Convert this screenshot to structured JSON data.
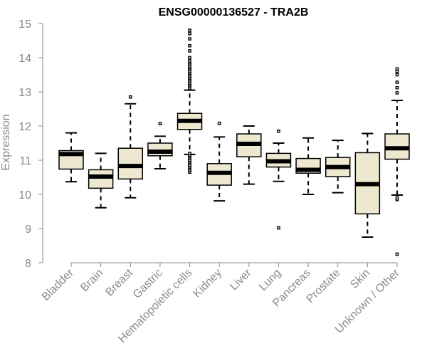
{
  "chart_data": {
    "type": "boxplot",
    "title": "ENSG00000136527 - TRA2B",
    "xlabel": "",
    "ylabel": "Expression",
    "ylim": [
      8,
      15
    ],
    "yticks": [
      8,
      9,
      10,
      11,
      12,
      13,
      14,
      15
    ],
    "box_color": "#eee8d0",
    "categories": [
      "Bladder",
      "Brain",
      "Breast",
      "Gastric",
      "Hematopoietic cells",
      "Kidney",
      "Liver",
      "Lung",
      "Pancreas",
      "Prostate",
      "Skin",
      "Unknown / Other"
    ],
    "boxes": [
      {
        "category": "Bladder",
        "min": 10.37,
        "q1": 10.74,
        "median": 11.18,
        "q3": 11.28,
        "max": 11.8,
        "outliers": []
      },
      {
        "category": "Brain",
        "min": 9.61,
        "q1": 10.18,
        "median": 10.52,
        "q3": 10.72,
        "max": 11.2,
        "outliers": []
      },
      {
        "category": "Breast",
        "min": 9.9,
        "q1": 10.45,
        "median": 10.83,
        "q3": 11.35,
        "max": 12.65,
        "outliers": [
          12.85
        ]
      },
      {
        "category": "Gastric",
        "min": 10.75,
        "q1": 11.13,
        "median": 11.25,
        "q3": 11.5,
        "max": 11.7,
        "outliers": [
          12.07
        ]
      },
      {
        "category": "Hematopoietic cells",
        "min": 11.17,
        "q1": 11.9,
        "median": 12.15,
        "q3": 12.37,
        "max": 13.05,
        "outliers": [
          10.65,
          10.7,
          10.75,
          10.8,
          10.85,
          10.9,
          10.95,
          11.0,
          11.05,
          11.1,
          11.15,
          11.2,
          13.1,
          13.15,
          13.2,
          13.25,
          13.3,
          13.35,
          13.4,
          13.45,
          13.5,
          13.55,
          13.6,
          13.65,
          13.7,
          13.75,
          13.8,
          13.85,
          13.9,
          14.0,
          14.2,
          14.35,
          14.55,
          14.7,
          14.8
        ]
      },
      {
        "category": "Kidney",
        "min": 9.81,
        "q1": 10.27,
        "median": 10.63,
        "q3": 10.9,
        "max": 11.68,
        "outliers": [
          12.08
        ]
      },
      {
        "category": "Liver",
        "min": 10.3,
        "q1": 11.1,
        "median": 11.48,
        "q3": 11.77,
        "max": 12.0,
        "outliers": []
      },
      {
        "category": "Lung",
        "min": 10.38,
        "q1": 10.8,
        "median": 10.97,
        "q3": 11.2,
        "max": 11.5,
        "outliers": [
          11.85,
          9.02
        ]
      },
      {
        "category": "Pancreas",
        "min": 10.0,
        "q1": 10.62,
        "median": 10.72,
        "q3": 11.05,
        "max": 11.65,
        "outliers": []
      },
      {
        "category": "Prostate",
        "min": 10.05,
        "q1": 10.52,
        "median": 10.8,
        "q3": 11.08,
        "max": 11.58,
        "outliers": []
      },
      {
        "category": "Skin",
        "min": 8.75,
        "q1": 9.43,
        "median": 10.3,
        "q3": 11.22,
        "max": 11.78,
        "outliers": []
      },
      {
        "category": "Unknown / Other",
        "min": 9.98,
        "q1": 11.03,
        "median": 11.35,
        "q3": 11.77,
        "max": 12.75,
        "outliers": [
          9.85,
          9.9,
          12.97,
          13.12,
          13.28,
          13.5,
          13.6,
          13.67,
          8.25
        ]
      }
    ]
  }
}
